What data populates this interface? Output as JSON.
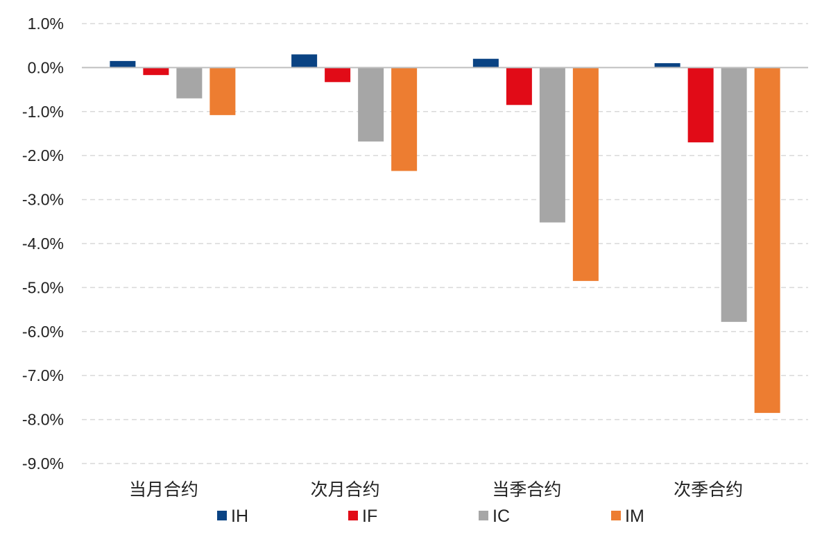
{
  "chart_data": {
    "type": "bar",
    "categories": [
      "当月合约",
      "次月合约",
      "当季合约",
      "次季合约"
    ],
    "series": [
      {
        "name": "IH",
        "color": "#0a4383",
        "values": [
          0.15,
          0.3,
          0.2,
          0.1
        ]
      },
      {
        "name": "IF",
        "color": "#e10b17",
        "values": [
          -0.17,
          -0.33,
          -0.85,
          -1.7
        ]
      },
      {
        "name": "IC",
        "color": "#a6a6a6",
        "values": [
          -0.7,
          -1.68,
          -3.52,
          -5.78
        ]
      },
      {
        "name": "IM",
        "color": "#ed7d31",
        "values": [
          -1.08,
          -2.35,
          -4.85,
          -7.85
        ]
      }
    ],
    "ylim": [
      -9,
      1
    ],
    "yticks": [
      "1.0%",
      "0.0%",
      "-1.0%",
      "-2.0%",
      "-3.0%",
      "-4.0%",
      "-5.0%",
      "-6.0%",
      "-7.0%",
      "-8.0%",
      "-9.0%"
    ],
    "grid": true,
    "legend_position": "bottom"
  }
}
